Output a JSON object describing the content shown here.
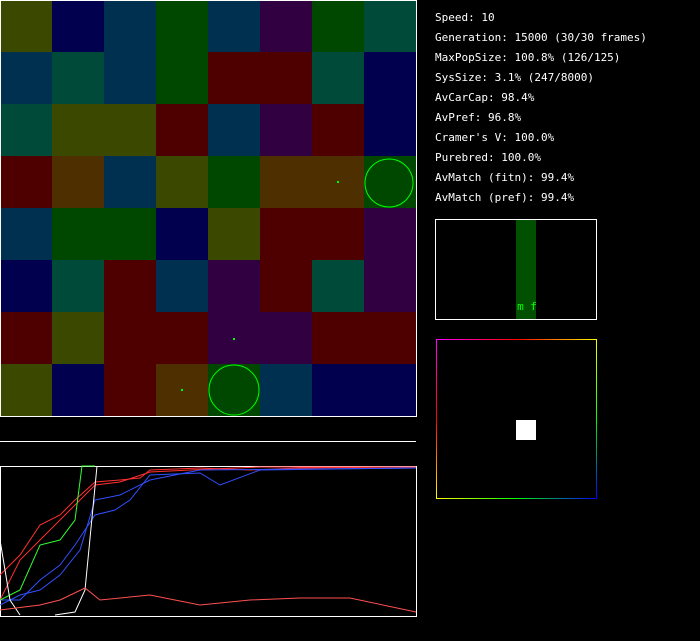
{
  "stats": [
    "Speed: 10",
    "Generation: 15000 (30/30 frames)",
    "MaxPopSize: 100.8% (126/125)",
    "SysSize: 3.1% (247/8000)",
    "AvCarCap: 98.4%",
    "AvPref: 96.8%",
    "Cramer's V: 100.0%",
    "Purebred: 100.0%",
    "AvMatch (fitn): 99.4%",
    "AvMatch (pref): 99.4%"
  ],
  "histogram": {
    "label": "m f"
  }
}
